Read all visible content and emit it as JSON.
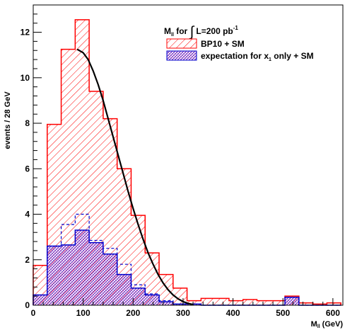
{
  "chart_data": {
    "type": "bar",
    "xlabel": "M",
    "xlabel_sub": "ll",
    "xlabel_unit": "(GeV)",
    "ylabel": "events / 28 GeV",
    "xlim": [
      0,
      620
    ],
    "ylim": [
      0,
      13.2
    ],
    "x_ticks": [
      0,
      100,
      200,
      300,
      400,
      500,
      600
    ],
    "y_ticks": [
      0,
      2,
      4,
      6,
      8,
      10,
      12
    ],
    "bin_edges": [
      0,
      28,
      56,
      84,
      112,
      140,
      168,
      196,
      224,
      252,
      280,
      308,
      336,
      364,
      392,
      420,
      448,
      476,
      504,
      532,
      560,
      588,
      616
    ],
    "legend": {
      "title_pre": "M",
      "title_sub": "ll",
      "title_mid": " for ",
      "title_integral": "∫",
      "title_post": " L=200 pb",
      "title_sup": "-1",
      "placement": "top-right"
    },
    "series": [
      {
        "name": "BP10 + SM",
        "color": "#ff0000",
        "style": "hatched-histogram",
        "values": [
          1.75,
          7.95,
          11.25,
          12.55,
          9.4,
          8.2,
          6.0,
          3.95,
          2.3,
          1.35,
          0.75,
          0.2,
          0.3,
          0.3,
          0.2,
          0.25,
          0.2,
          0.2,
          0.4,
          0.1,
          0.05,
          0.1
        ]
      },
      {
        "name": "expectation for x",
        "name_sub": "1",
        "name_post": " only + SM",
        "color": "#0000cc",
        "style": "crosshatched-histogram",
        "values": [
          0.45,
          2.6,
          2.65,
          3.3,
          2.75,
          2.25,
          1.35,
          0.75,
          0.45,
          0.15,
          0.05,
          0.05,
          0.0,
          0.0,
          0.0,
          0.0,
          0.0,
          0.0,
          0.35,
          0.0,
          0.0,
          0.0
        ]
      },
      {
        "style": "dashed-histogram",
        "color": "#0000cc",
        "values": [
          0.45,
          2.6,
          3.55,
          4.0,
          2.85,
          2.5,
          1.8,
          0.9,
          0.5,
          0.2,
          0.05,
          0.05,
          0.0,
          0.0,
          0.0,
          0.0,
          0.0,
          0.0,
          0.35,
          0.0,
          0.0,
          0.0
        ]
      },
      {
        "style": "fit-curve",
        "color": "#000000",
        "x": [
          88,
          100,
          110,
          120,
          130,
          140,
          150,
          160,
          170,
          180,
          190,
          200,
          210,
          220,
          230,
          240,
          250,
          260,
          270,
          280,
          290,
          300,
          310,
          320
        ],
        "y": [
          11.25,
          11.1,
          10.8,
          10.3,
          9.7,
          9.0,
          8.2,
          7.4,
          6.6,
          5.8,
          5.0,
          4.25,
          3.55,
          2.9,
          2.3,
          1.8,
          1.35,
          0.98,
          0.68,
          0.45,
          0.28,
          0.16,
          0.08,
          0.03
        ]
      }
    ]
  }
}
